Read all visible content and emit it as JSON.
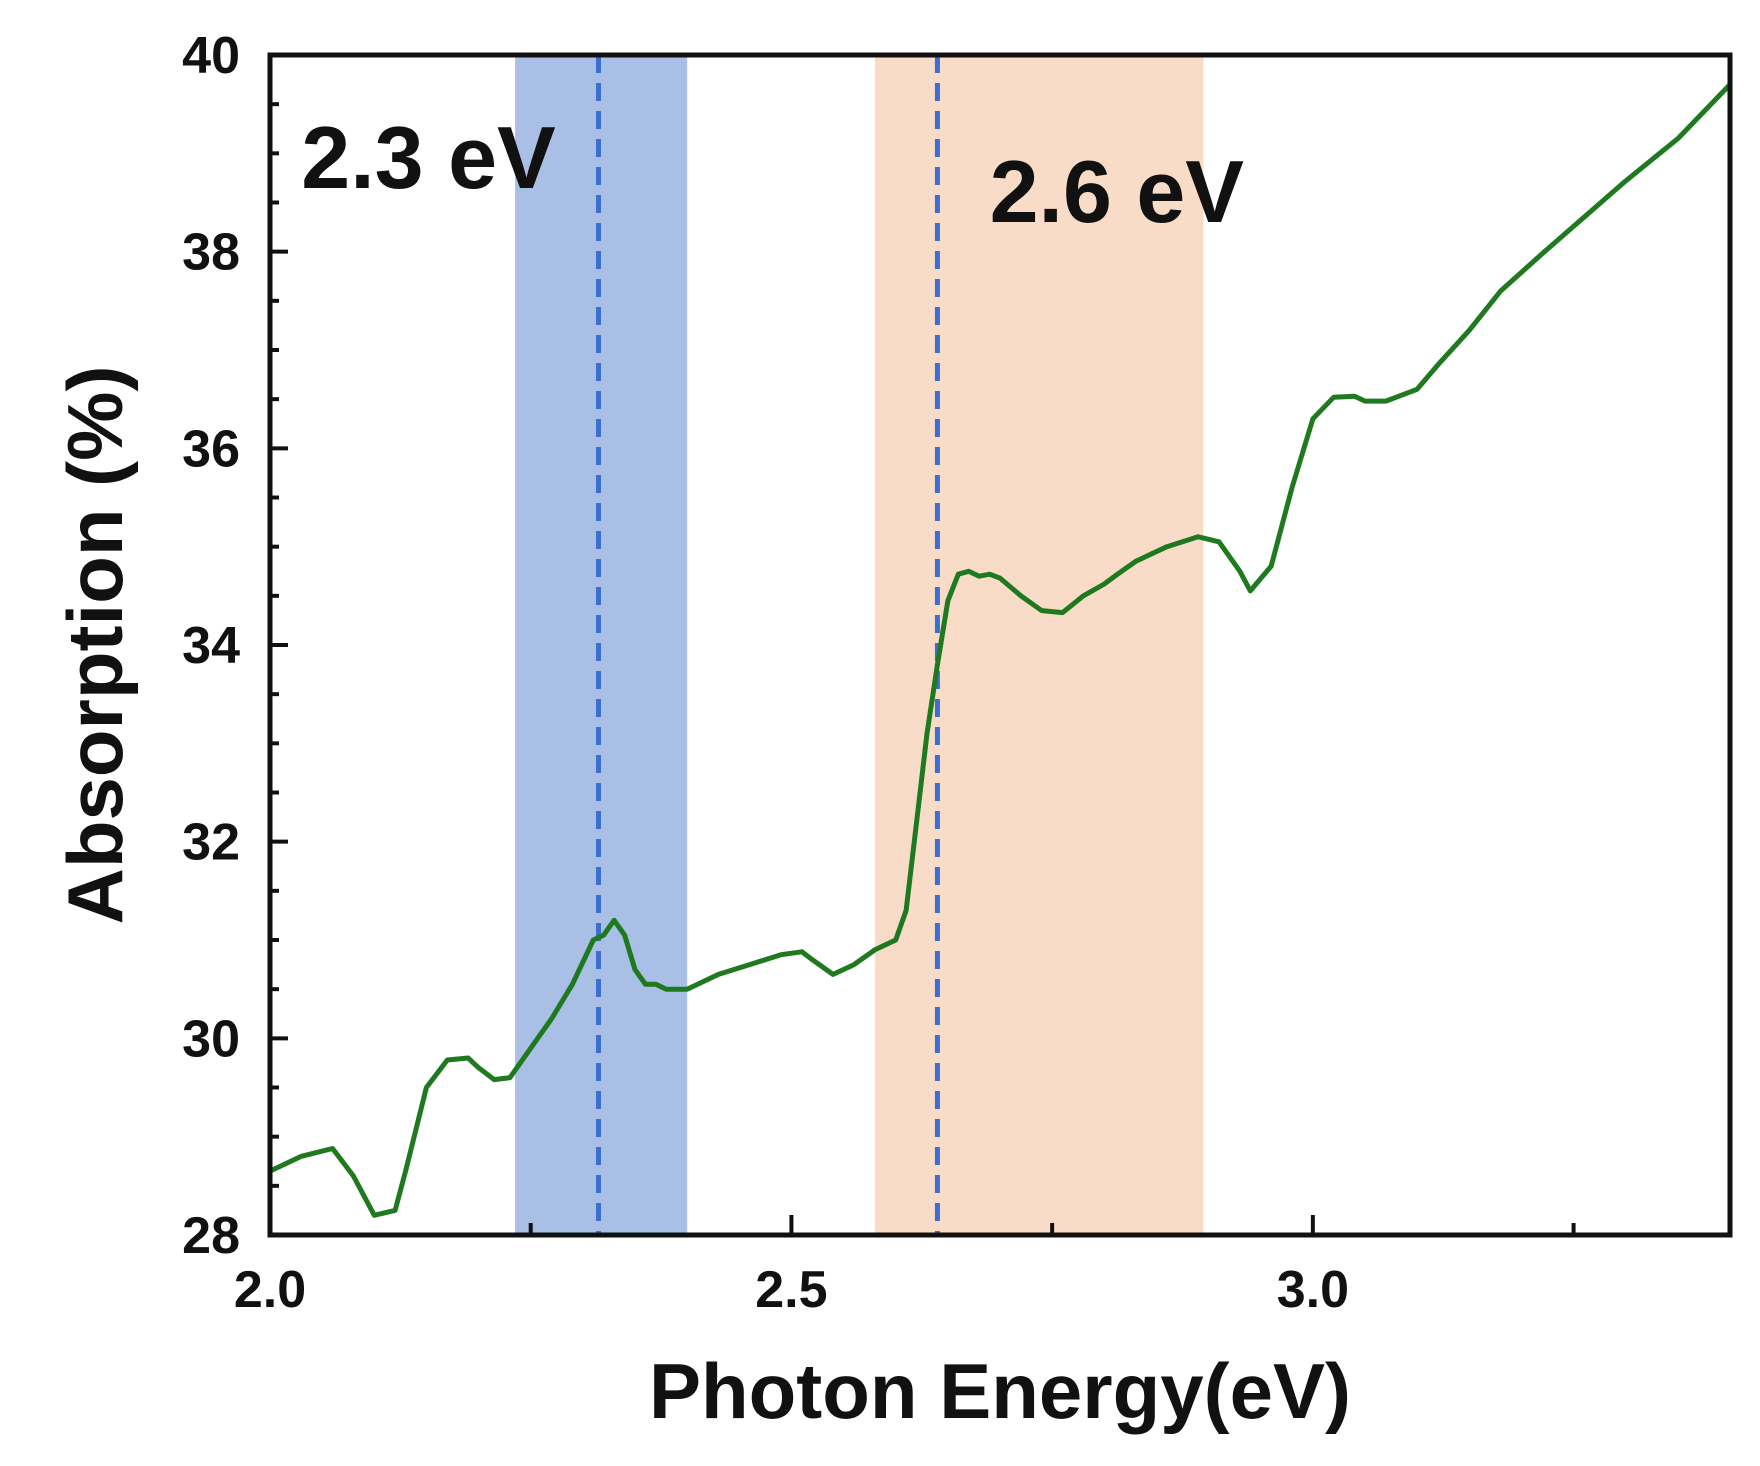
{
  "chart_data": {
    "type": "line",
    "title": "",
    "xlabel": "Photon Energy(eV)",
    "ylabel": "Absorption (%)",
    "xlim": [
      2.0,
      3.4
    ],
    "ylim": [
      28,
      40
    ],
    "xticks": [
      2.0,
      2.5,
      3.0
    ],
    "xtick_labels": [
      "2.0",
      "2.5",
      "3.0"
    ],
    "yticks": [
      28,
      30,
      32,
      34,
      36,
      38,
      40
    ],
    "ytick_labels": [
      "28",
      "30",
      "32",
      "34",
      "36",
      "38",
      "40"
    ],
    "grid": false,
    "line_color": "#1f7a1f",
    "series": [
      {
        "name": "Absorption",
        "x": [
          2.0,
          2.03,
          2.06,
          2.08,
          2.1,
          2.12,
          2.13,
          2.15,
          2.17,
          2.19,
          2.2,
          2.215,
          2.23,
          2.25,
          2.27,
          2.29,
          2.31,
          2.32,
          2.33,
          2.34,
          2.35,
          2.36,
          2.37,
          2.38,
          2.4,
          2.43,
          2.46,
          2.49,
          2.51,
          2.52,
          2.54,
          2.56,
          2.58,
          2.6,
          2.61,
          2.62,
          2.63,
          2.64,
          2.65,
          2.66,
          2.67,
          2.68,
          2.69,
          2.7,
          2.72,
          2.74,
          2.76,
          2.78,
          2.8,
          2.81,
          2.83,
          2.86,
          2.89,
          2.91,
          2.93,
          2.94,
          2.96,
          2.98,
          3.0,
          3.02,
          3.04,
          3.05,
          3.07,
          3.08,
          3.1,
          3.12,
          3.15,
          3.18,
          3.22,
          3.26,
          3.3,
          3.35,
          3.4
        ],
        "y": [
          28.65,
          28.8,
          28.88,
          28.6,
          28.2,
          28.25,
          28.65,
          29.5,
          29.78,
          29.8,
          29.7,
          29.58,
          29.6,
          29.9,
          30.2,
          30.55,
          31.0,
          31.05,
          31.2,
          31.05,
          30.7,
          30.55,
          30.55,
          30.5,
          30.5,
          30.65,
          30.75,
          30.85,
          30.88,
          30.8,
          30.65,
          30.75,
          30.9,
          31.0,
          31.3,
          32.2,
          33.1,
          33.8,
          34.45,
          34.72,
          34.75,
          34.7,
          34.72,
          34.68,
          34.5,
          34.35,
          34.33,
          34.5,
          34.62,
          34.7,
          34.85,
          35.0,
          35.1,
          35.05,
          34.75,
          34.55,
          34.8,
          35.6,
          36.3,
          36.52,
          36.53,
          36.48,
          36.48,
          36.52,
          36.6,
          36.85,
          37.2,
          37.6,
          37.98,
          38.35,
          38.72,
          39.15,
          39.7
        ]
      }
    ],
    "bands": [
      {
        "x_start": 2.235,
        "x_end": 2.4,
        "color": "#a9bfe6"
      },
      {
        "x_start": 2.58,
        "x_end": 2.895,
        "color": "#f9dcc8"
      }
    ],
    "vlines": [
      {
        "x": 2.315,
        "style": "dashed",
        "color": "#3a6fd1"
      },
      {
        "x": 2.64,
        "style": "dashed",
        "color": "#3a6fd1"
      }
    ],
    "annotations": [
      {
        "text": "2.3 eV",
        "x": 2.03,
        "y": 38.65
      },
      {
        "text": "2.6 eV",
        "x": 2.69,
        "y": 38.3
      }
    ]
  }
}
